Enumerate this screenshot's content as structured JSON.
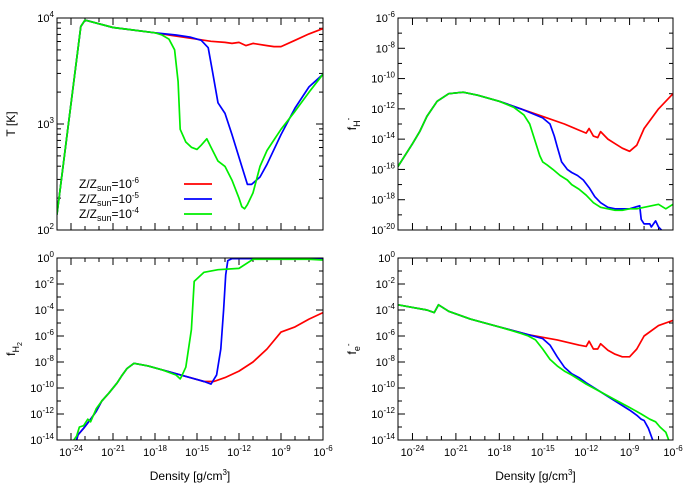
{
  "chart_data": [
    {
      "type": "line",
      "panel": "T",
      "xscale": "log",
      "yscale": "log",
      "xlim_exp": [
        -25,
        -6
      ],
      "ylim_exp": [
        2,
        4
      ],
      "ylabel_main": "T [K]",
      "ylabel_sub": "",
      "ylabel_sup": "",
      "xlabel": "",
      "xticks_exp": [],
      "yticks_exp": [
        2,
        3,
        4
      ],
      "legend": {
        "position": "lower-left",
        "entries": [
          {
            "prefix": "Z/Z",
            "sub": "sun",
            "mid": "=10",
            "sup": "-6",
            "series": 0
          },
          {
            "prefix": "Z/Z",
            "sub": "sun",
            "mid": "=10",
            "sup": "-5",
            "series": 1
          },
          {
            "prefix": "Z/Z",
            "sub": "sun",
            "mid": "=10",
            "sup": "-4",
            "series": 2
          }
        ]
      },
      "series": [
        {
          "name": "Z/Zsun=10^-6",
          "color": "#ff0000",
          "log_x": [
            -25,
            -23.3,
            -23,
            -21,
            -18,
            -17,
            -15,
            -14,
            -13,
            -12.5,
            -12,
            -11.5,
            -11,
            -10,
            -9.5,
            -9,
            -8,
            -7,
            -6
          ],
          "log_y": [
            2.15,
            3.92,
            3.98,
            3.91,
            3.86,
            3.84,
            3.8,
            3.78,
            3.77,
            3.76,
            3.77,
            3.74,
            3.76,
            3.74,
            3.73,
            3.73,
            3.79,
            3.85,
            3.9
          ]
        },
        {
          "name": "Z/Zsun=10^-5",
          "color": "#0000ff",
          "log_x": [
            -25,
            -23.3,
            -23,
            -21,
            -18,
            -16.5,
            -15.5,
            -14.7,
            -14.2,
            -13.9,
            -13.5,
            -13,
            -12.5,
            -11.8,
            -11.4,
            -11.1,
            -10.5,
            -10,
            -9,
            -8,
            -7,
            -6
          ],
          "log_y": [
            2.15,
            3.92,
            3.98,
            3.91,
            3.86,
            3.84,
            3.82,
            3.79,
            3.72,
            3.5,
            3.2,
            3.1,
            2.9,
            2.6,
            2.43,
            2.43,
            2.5,
            2.62,
            2.9,
            3.15,
            3.35,
            3.47
          ]
        },
        {
          "name": "Z/Zsun=10^-4",
          "color": "#00ee00",
          "log_x": [
            -25,
            -23.3,
            -23,
            -21,
            -18,
            -17.5,
            -17,
            -16.6,
            -16.35,
            -16.2,
            -15.8,
            -15.4,
            -15,
            -14.7,
            -14.3,
            -14,
            -13.5,
            -13,
            -12.5,
            -12,
            -11.8,
            -11.6,
            -11.4,
            -11,
            -10.5,
            -10,
            -9.5,
            -9,
            -8,
            -7,
            -6
          ],
          "log_y": [
            2.15,
            3.92,
            3.98,
            3.91,
            3.86,
            3.84,
            3.8,
            3.7,
            3.4,
            2.95,
            2.83,
            2.78,
            2.76,
            2.8,
            2.86,
            2.78,
            2.65,
            2.6,
            2.47,
            2.3,
            2.22,
            2.2,
            2.24,
            2.35,
            2.6,
            2.75,
            2.85,
            2.95,
            3.12,
            3.3,
            3.47
          ]
        }
      ]
    },
    {
      "type": "line",
      "panel": "f_H-",
      "xscale": "log",
      "yscale": "log",
      "xlim_exp": [
        -25,
        -6
      ],
      "ylim_exp": [
        -20,
        -6
      ],
      "ylabel_main": "f",
      "ylabel_sub": "H",
      "ylabel_sup": "-",
      "xlabel": "",
      "xticks_exp": [],
      "yticks_exp": [
        -20,
        -18,
        -16,
        -14,
        -12,
        -10,
        -8,
        -6
      ],
      "series": [
        {
          "name": "Z/Zsun=10^-6",
          "color": "#ff0000",
          "log_x": [
            -25,
            -24,
            -23.5,
            -23,
            -22.3,
            -21.5,
            -20.5,
            -19.5,
            -18,
            -16.5,
            -15,
            -13.5,
            -12.5,
            -12,
            -11.8,
            -11.5,
            -11.2,
            -11,
            -10.5,
            -10,
            -9.5,
            -9,
            -8.5,
            -8,
            -7,
            -6
          ],
          "log_y": [
            -15.8,
            -14.3,
            -13.5,
            -12.5,
            -11.5,
            -11.0,
            -10.9,
            -11.1,
            -11.5,
            -12.0,
            -12.5,
            -13.0,
            -13.4,
            -13.6,
            -13.3,
            -13.8,
            -13.9,
            -13.5,
            -14.0,
            -14.3,
            -14.6,
            -14.8,
            -14.4,
            -13.3,
            -12.0,
            -11.0
          ]
        },
        {
          "name": "Z/Zsun=10^-5",
          "color": "#0000ff",
          "log_x": [
            -25,
            -24,
            -23.5,
            -23,
            -22.3,
            -21.5,
            -20.5,
            -19.5,
            -18,
            -16.5,
            -15,
            -14.5,
            -14.2,
            -14,
            -13.7,
            -13.3,
            -13,
            -12.6,
            -12.2,
            -11.8,
            -11.4,
            -11,
            -10.5,
            -10,
            -9.5,
            -9,
            -8.3,
            -8.2,
            -8,
            -7.6,
            -7.5,
            -7.2,
            -7,
            -6.8
          ],
          "log_y": [
            -15.8,
            -14.3,
            -13.5,
            -12.5,
            -11.5,
            -11.0,
            -10.9,
            -11.1,
            -11.5,
            -12.0,
            -12.6,
            -13.0,
            -13.8,
            -14.5,
            -15.5,
            -16.0,
            -16.2,
            -16.4,
            -16.7,
            -17.2,
            -17.8,
            -18.2,
            -18.5,
            -18.6,
            -18.6,
            -18.6,
            -18.4,
            -19.3,
            -19.6,
            -19.6,
            -19.8,
            -19.4,
            -19.8,
            -20.0
          ]
        },
        {
          "name": "Z/Zsun=10^-4",
          "color": "#00ee00",
          "log_x": [
            -25,
            -24,
            -23.5,
            -23,
            -22.3,
            -21.5,
            -20.5,
            -19.5,
            -18,
            -17,
            -16.3,
            -15.9,
            -15.5,
            -15.2,
            -15,
            -14.7,
            -14.3,
            -13.8,
            -13.3,
            -13,
            -12.5,
            -12,
            -11.5,
            -11,
            -10.5,
            -10,
            -9.5,
            -9,
            -8.5,
            -8,
            -7.5,
            -7,
            -6.5,
            -6
          ],
          "log_y": [
            -15.8,
            -14.3,
            -13.5,
            -12.5,
            -11.5,
            -11.0,
            -10.9,
            -11.1,
            -11.5,
            -11.9,
            -12.4,
            -13.0,
            -14.2,
            -15.1,
            -15.5,
            -15.7,
            -16.0,
            -16.4,
            -16.7,
            -17.0,
            -17.3,
            -17.7,
            -18.2,
            -18.5,
            -18.6,
            -18.7,
            -18.7,
            -18.6,
            -18.6,
            -18.5,
            -18.4,
            -18.3,
            -18.6,
            -18.3
          ]
        }
      ]
    },
    {
      "type": "line",
      "panel": "f_H2",
      "xscale": "log",
      "yscale": "log",
      "xlim_exp": [
        -25,
        -6
      ],
      "ylim_exp": [
        -14,
        0
      ],
      "ylabel_main": "f",
      "ylabel_sub": "H",
      "ylabel_subsub": "2",
      "ylabel_sup": "",
      "xlabel": "Density [g/cm",
      "xlabel_sup": "3",
      "xlabel_end": "]",
      "xticks_exp": [
        -24,
        -21,
        -18,
        -15,
        -12,
        -9,
        -6
      ],
      "yticks_exp": [
        -14,
        -12,
        -10,
        -8,
        -6,
        -4,
        -2,
        0
      ],
      "series": [
        {
          "name": "Z/Zsun=10^-6",
          "color": "#ff0000",
          "log_x": [
            -23.6,
            -23.5,
            -23.1,
            -22.6,
            -22.2,
            -21.8,
            -21.3,
            -20.7,
            -20.4,
            -20,
            -19.5,
            -18.5,
            -17.5,
            -16.5,
            -15.5,
            -14.5,
            -13.8,
            -13,
            -12,
            -11,
            -10,
            -9,
            -8,
            -7,
            -6
          ],
          "log_y": [
            -14.0,
            -13.6,
            -13.1,
            -12.4,
            -11.8,
            -11.0,
            -10.4,
            -9.6,
            -9.1,
            -8.5,
            -8.1,
            -8.3,
            -8.6,
            -8.9,
            -9.2,
            -9.5,
            -9.5,
            -9.2,
            -8.7,
            -8.0,
            -7.0,
            -5.7,
            -5.3,
            -4.7,
            -4.2
          ]
        },
        {
          "name": "Z/Zsun=10^-5",
          "color": "#0000ff",
          "log_x": [
            -23.6,
            -23.5,
            -23.1,
            -22.6,
            -22.2,
            -21.8,
            -21.3,
            -20.7,
            -20.4,
            -20,
            -19.5,
            -18.5,
            -17.5,
            -16.5,
            -15.5,
            -14.5,
            -14,
            -13.6,
            -13.3,
            -13.1,
            -12.95,
            -12.8,
            -12.5,
            -12,
            -11,
            -10,
            -9,
            -8,
            -7,
            -6
          ],
          "log_y": [
            -14.0,
            -13.6,
            -13.1,
            -12.4,
            -11.8,
            -11.0,
            -10.4,
            -9.6,
            -9.1,
            -8.5,
            -8.1,
            -8.3,
            -8.6,
            -8.9,
            -9.2,
            -9.5,
            -9.7,
            -9.0,
            -7.0,
            -4.0,
            -1.3,
            -0.2,
            -0.05,
            -0.05,
            -0.05,
            -0.05,
            -0.05,
            -0.05,
            -0.05,
            -0.1
          ]
        },
        {
          "name": "Z/Zsun=10^-4",
          "color": "#00ee00",
          "log_x": [
            -23.8,
            -23.6,
            -23.4,
            -23.1,
            -22.8,
            -22.6,
            -22.2,
            -21.8,
            -21.3,
            -20.7,
            -20.4,
            -20,
            -19.5,
            -18.5,
            -17.5,
            -16.5,
            -16.2,
            -16.1,
            -15.8,
            -15.4,
            -15.2,
            -14.5,
            -13.5,
            -12,
            -11,
            -10,
            -9,
            -8,
            -7,
            -6
          ],
          "log_y": [
            -14.0,
            -13.7,
            -13.0,
            -12.9,
            -12.4,
            -12.6,
            -11.6,
            -11.0,
            -10.4,
            -9.6,
            -9.1,
            -8.5,
            -8.1,
            -8.3,
            -8.6,
            -9.0,
            -9.3,
            -9.1,
            -8.4,
            -5.5,
            -1.8,
            -1.1,
            -0.9,
            -0.8,
            -0.1,
            -0.1,
            -0.1,
            -0.1,
            -0.1,
            -0.15
          ]
        }
      ]
    },
    {
      "type": "line",
      "panel": "f_e-",
      "xscale": "log",
      "yscale": "log",
      "xlim_exp": [
        -25,
        -6
      ],
      "ylim_exp": [
        -14,
        0
      ],
      "ylabel_main": "f",
      "ylabel_sub": "e",
      "ylabel_sup": "-",
      "xlabel": "Density [g/cm",
      "xlabel_sup": "3",
      "xlabel_end": "]",
      "xticks_exp": [
        -24,
        -21,
        -18,
        -15,
        -12,
        -9,
        -6
      ],
      "yticks_exp": [
        -14,
        -12,
        -10,
        -8,
        -6,
        -4,
        -2,
        0
      ],
      "series": [
        {
          "name": "Z/Zsun=10^-6",
          "color": "#ff0000",
          "log_x": [
            -25,
            -24,
            -23,
            -22.5,
            -22.2,
            -21.5,
            -20,
            -18,
            -16,
            -14,
            -12.5,
            -12,
            -11.8,
            -11.5,
            -11.2,
            -11,
            -10.5,
            -10,
            -9.5,
            -9,
            -8.5,
            -8,
            -7,
            -6
          ],
          "log_y": [
            -3.6,
            -3.8,
            -4.0,
            -4.2,
            -3.6,
            -4.1,
            -4.7,
            -5.3,
            -5.9,
            -6.3,
            -6.7,
            -6.8,
            -6.4,
            -7.0,
            -7.0,
            -6.6,
            -7.1,
            -7.4,
            -7.6,
            -7.6,
            -7.0,
            -6.0,
            -5.2,
            -4.8
          ]
        },
        {
          "name": "Z/Zsun=10^-5",
          "color": "#0000ff",
          "log_x": [
            -25,
            -24,
            -23,
            -22.5,
            -22.2,
            -21.5,
            -20,
            -18,
            -16,
            -15,
            -14.5,
            -14,
            -13.5,
            -13,
            -12.5,
            -12,
            -11,
            -10,
            -9,
            -8.5,
            -8.2,
            -8,
            -7.7,
            -7.4
          ],
          "log_y": [
            -3.6,
            -3.8,
            -4.0,
            -4.2,
            -3.6,
            -4.1,
            -4.7,
            -5.3,
            -5.9,
            -6.2,
            -6.7,
            -7.6,
            -8.4,
            -8.9,
            -9.2,
            -9.6,
            -10.3,
            -11.0,
            -11.7,
            -12.1,
            -12.4,
            -12.5,
            -13.1,
            -14.0
          ]
        },
        {
          "name": "Z/Zsun=10^-4",
          "color": "#00ee00",
          "log_x": [
            -25,
            -24,
            -23,
            -22.5,
            -22.2,
            -21.5,
            -20,
            -18,
            -16.5,
            -16,
            -15.5,
            -15,
            -14.5,
            -14,
            -13.5,
            -13,
            -12,
            -11,
            -10,
            -9,
            -8.2,
            -7.6,
            -7.2,
            -6.9,
            -6.5,
            -6.3
          ],
          "log_y": [
            -3.6,
            -3.8,
            -4.0,
            -4.2,
            -3.6,
            -4.1,
            -4.7,
            -5.3,
            -5.8,
            -6.0,
            -6.3,
            -7.0,
            -7.8,
            -8.3,
            -8.7,
            -9.0,
            -9.7,
            -10.3,
            -10.9,
            -11.5,
            -12.0,
            -12.4,
            -12.6,
            -13.0,
            -13.4,
            -14.0
          ]
        }
      ]
    }
  ]
}
